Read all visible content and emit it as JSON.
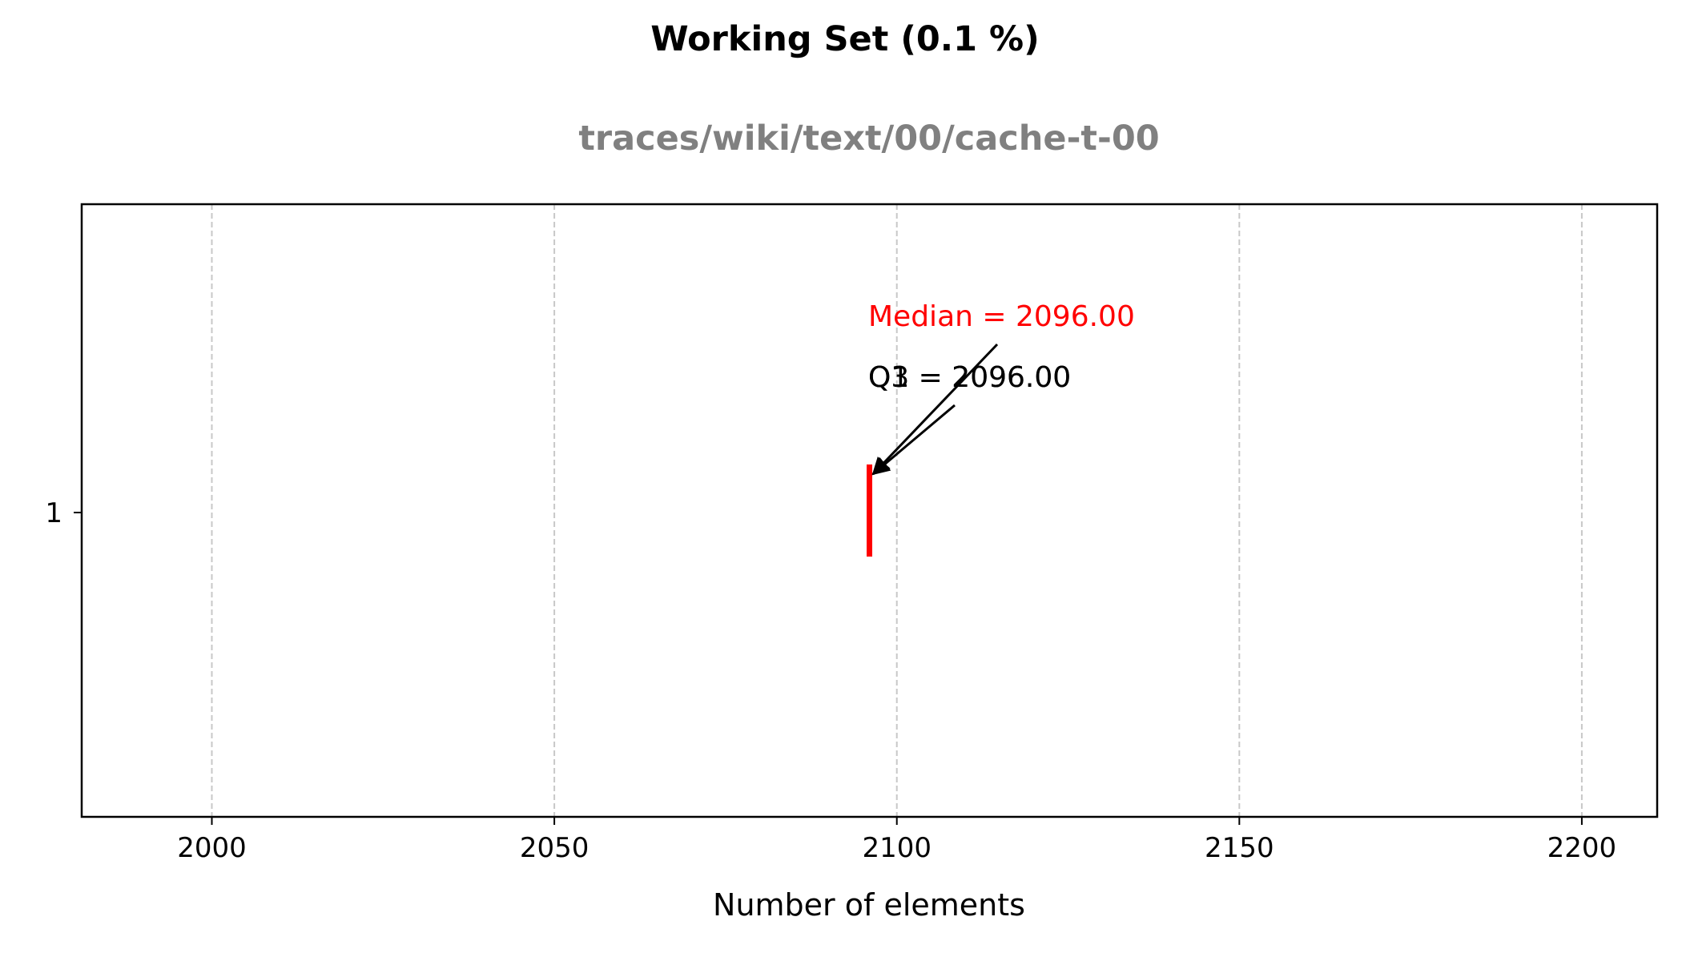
{
  "chart_data": {
    "type": "boxplot",
    "title": "Working Set (0.1 %)",
    "subtitle": "traces/wiki/text/00/cache-t-00",
    "xlabel": "Number of elements",
    "xlim": [
      1981,
      2211
    ],
    "x_ticks": [
      2000,
      2050,
      2100,
      2150,
      2200
    ],
    "y_ticks": [
      "1"
    ],
    "grid": {
      "x": true,
      "y": false,
      "style": "dashed"
    },
    "box": {
      "q1": 2096.0,
      "median": 2096.0,
      "q3": 2096.0,
      "whisker_low": 2096.0,
      "whisker_high": 2096.0
    },
    "annotations": [
      {
        "text": "Median = 2096.00",
        "color": "#ff0000",
        "x": 2096.0
      },
      {
        "text": "Q1 = 2096.00",
        "color": "#000000",
        "x": 2096.0
      },
      {
        "text": "Q3 = 2096.00",
        "color": "#000000",
        "x": 2096.0
      }
    ],
    "colors": {
      "median": "#ff0000",
      "grid": "#c8c8c8",
      "subtitle": "#808080",
      "text": "#000000"
    }
  }
}
